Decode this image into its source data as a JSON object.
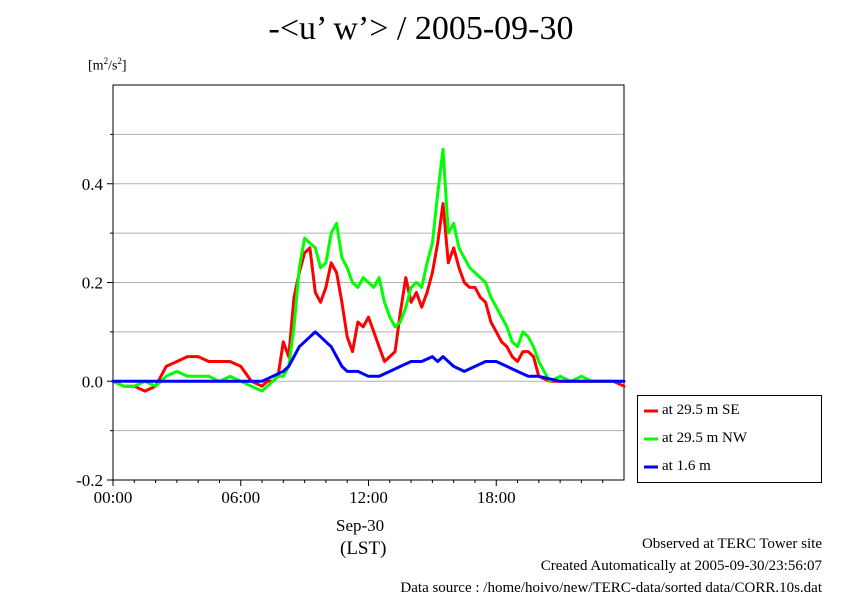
{
  "title": "-<u’ w’> / 2005-09-30",
  "unit_label": {
    "base": "[m",
    "sup": "2",
    "mid": "/s",
    "sup2": "2",
    "end": "]"
  },
  "x_axis": {
    "date_label": "Sep-30",
    "tz_label": "(LST)"
  },
  "footer": {
    "line1": "Observed at TERC Tower site",
    "line2": "Created Automatically at 2005-09-30/23:56:07",
    "line3": "Data source : /home/hoivo/new/TERC-data/sorted  data/CORR.10s.dat"
  },
  "chart_data": {
    "type": "line",
    "title": "-<u’ w’> / 2005-09-30",
    "ylabel": "[m2/s2]",
    "xlabel": "Sep-30 (LST)",
    "xlim": [
      0,
      24
    ],
    "ylim": [
      -0.2,
      0.6
    ],
    "x_ticks": [
      0,
      6,
      12,
      18
    ],
    "x_tick_labels": [
      "00:00",
      "06:00",
      "12:00",
      "18:00"
    ],
    "y_ticks": [
      -0.2,
      0.0,
      0.2,
      0.4
    ],
    "y_tick_labels": [
      "-0.2",
      "0.0",
      "0.2",
      "0.4"
    ],
    "grid": true,
    "legend_position": "bottom-right outside",
    "series": [
      {
        "name": "at 29.5 m SE",
        "color": "#ff0000",
        "x": [
          0,
          0.5,
          1,
          1.5,
          2,
          2.5,
          3,
          3.5,
          4,
          4.5,
          5,
          5.5,
          6,
          6.5,
          7,
          7.25,
          7.5,
          7.75,
          8,
          8.25,
          8.5,
          8.75,
          9,
          9.25,
          9.5,
          9.75,
          10,
          10.25,
          10.5,
          10.75,
          11,
          11.25,
          11.5,
          11.75,
          12,
          12.25,
          12.5,
          12.75,
          13,
          13.25,
          13.5,
          13.75,
          14,
          14.25,
          14.5,
          14.75,
          15,
          15.25,
          15.5,
          15.75,
          16,
          16.25,
          16.5,
          16.75,
          17,
          17.25,
          17.5,
          17.75,
          18,
          18.25,
          18.5,
          18.75,
          19,
          19.25,
          19.5,
          19.75,
          20,
          20.5,
          21,
          21.5,
          22,
          22.5,
          23,
          23.5,
          24
        ],
        "y": [
          0.0,
          -0.01,
          -0.01,
          -0.02,
          -0.01,
          0.03,
          0.04,
          0.05,
          0.05,
          0.04,
          0.04,
          0.04,
          0.03,
          0.0,
          -0.01,
          0.0,
          0.0,
          0.01,
          0.08,
          0.05,
          0.17,
          0.22,
          0.26,
          0.27,
          0.18,
          0.16,
          0.19,
          0.24,
          0.22,
          0.16,
          0.09,
          0.06,
          0.12,
          0.11,
          0.13,
          0.1,
          0.07,
          0.04,
          0.05,
          0.06,
          0.14,
          0.21,
          0.16,
          0.18,
          0.15,
          0.18,
          0.22,
          0.28,
          0.36,
          0.24,
          0.27,
          0.23,
          0.2,
          0.19,
          0.19,
          0.17,
          0.16,
          0.12,
          0.1,
          0.08,
          0.07,
          0.05,
          0.04,
          0.06,
          0.06,
          0.05,
          0.01,
          0.0,
          0.0,
          0.0,
          0.0,
          0.0,
          0.0,
          0.0,
          -0.01
        ]
      },
      {
        "name": "at 29.5 m NW",
        "color": "#00ff00",
        "x": [
          0,
          0.5,
          1,
          1.5,
          2,
          2.5,
          3,
          3.5,
          4,
          4.5,
          5,
          5.5,
          6,
          6.5,
          7,
          7.25,
          7.5,
          7.75,
          8,
          8.25,
          8.5,
          8.75,
          9,
          9.25,
          9.5,
          9.75,
          10,
          10.25,
          10.5,
          10.75,
          11,
          11.25,
          11.5,
          11.75,
          12,
          12.25,
          12.5,
          12.75,
          13,
          13.25,
          13.5,
          13.75,
          14,
          14.25,
          14.5,
          14.75,
          15,
          15.25,
          15.5,
          15.75,
          16,
          16.25,
          16.5,
          16.75,
          17,
          17.25,
          17.5,
          17.75,
          18,
          18.25,
          18.5,
          18.75,
          19,
          19.25,
          19.5,
          19.75,
          20,
          20.5,
          21,
          21.5,
          22,
          22.5,
          23,
          23.5,
          24
        ],
        "y": [
          0.0,
          -0.01,
          -0.01,
          0.0,
          -0.01,
          0.01,
          0.02,
          0.01,
          0.01,
          0.01,
          0.0,
          0.01,
          0.0,
          -0.01,
          -0.02,
          -0.01,
          0.0,
          0.01,
          0.01,
          0.03,
          0.11,
          0.23,
          0.29,
          0.28,
          0.27,
          0.23,
          0.24,
          0.3,
          0.32,
          0.25,
          0.23,
          0.2,
          0.19,
          0.21,
          0.2,
          0.19,
          0.21,
          0.16,
          0.13,
          0.11,
          0.12,
          0.15,
          0.19,
          0.2,
          0.19,
          0.24,
          0.28,
          0.38,
          0.47,
          0.3,
          0.32,
          0.27,
          0.25,
          0.23,
          0.22,
          0.21,
          0.2,
          0.17,
          0.15,
          0.13,
          0.11,
          0.08,
          0.07,
          0.1,
          0.09,
          0.07,
          0.04,
          0.0,
          0.01,
          0.0,
          0.01,
          0.0,
          0.0,
          0.0,
          0.0
        ]
      },
      {
        "name": "at 1.6 m",
        "color": "#0000ff",
        "x": [
          0,
          1,
          2,
          3,
          4,
          5,
          6,
          7,
          7.5,
          8,
          8.25,
          8.5,
          8.75,
          9,
          9.25,
          9.5,
          9.75,
          10,
          10.25,
          10.5,
          10.75,
          11,
          11.5,
          12,
          12.5,
          13,
          13.5,
          14,
          14.5,
          15,
          15.25,
          15.5,
          15.75,
          16,
          16.5,
          17,
          17.5,
          18,
          18.5,
          19,
          19.5,
          20,
          21,
          22,
          23,
          24
        ],
        "y": [
          0.0,
          0.0,
          0.0,
          0.0,
          0.0,
          0.0,
          0.0,
          0.0,
          0.01,
          0.02,
          0.03,
          0.05,
          0.07,
          0.08,
          0.09,
          0.1,
          0.09,
          0.08,
          0.07,
          0.05,
          0.03,
          0.02,
          0.02,
          0.01,
          0.01,
          0.02,
          0.03,
          0.04,
          0.04,
          0.05,
          0.04,
          0.05,
          0.04,
          0.03,
          0.02,
          0.03,
          0.04,
          0.04,
          0.03,
          0.02,
          0.01,
          0.01,
          0.0,
          0.0,
          0.0,
          0.0
        ]
      }
    ]
  }
}
